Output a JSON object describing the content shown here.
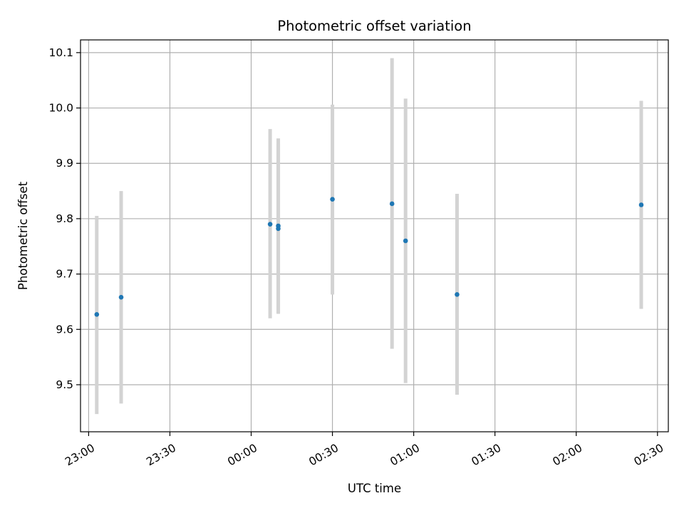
{
  "chart_data": {
    "type": "scatter",
    "title": "Photometric offset variation",
    "xlabel": "UTC time",
    "ylabel": "Photometric offset",
    "grid": true,
    "x_unit": "HH:MM (UTC)",
    "xlim": [
      "22:57",
      "02:34"
    ],
    "ylim": [
      9.415,
      10.123
    ],
    "x_ticks": [
      "23:00",
      "23:30",
      "00:00",
      "00:30",
      "01:00",
      "01:30",
      "02:00",
      "02:30"
    ],
    "y_ticks": [
      "9.5",
      "9.6",
      "9.7",
      "9.8",
      "9.9",
      "10.0",
      "10.1"
    ],
    "colors": {
      "points": "#1f77b4",
      "errorbars": "#d3d3d3",
      "grid": "#b0b0b0"
    },
    "points": [
      {
        "x": "23:03",
        "y": 9.627,
        "ylow": 9.447,
        "yhigh": 9.805
      },
      {
        "x": "23:12",
        "y": 9.658,
        "ylow": 9.466,
        "yhigh": 9.85
      },
      {
        "x": "00:07",
        "y": 9.79,
        "ylow": 9.62,
        "yhigh": 9.962
      },
      {
        "x": "00:10",
        "y": 9.787,
        "ylow": 9.628,
        "yhigh": 9.945
      },
      {
        "x": "00:10",
        "y": 9.782,
        "ylow": 9.63,
        "yhigh": 9.935
      },
      {
        "x": "00:30",
        "y": 9.835,
        "ylow": 9.663,
        "yhigh": 10.006
      },
      {
        "x": "00:52",
        "y": 9.827,
        "ylow": 9.565,
        "yhigh": 10.09
      },
      {
        "x": "00:57",
        "y": 9.76,
        "ylow": 9.503,
        "yhigh": 10.017
      },
      {
        "x": "01:16",
        "y": 9.663,
        "ylow": 9.482,
        "yhigh": 9.845
      },
      {
        "x": "02:24",
        "y": 9.825,
        "ylow": 9.637,
        "yhigh": 10.013
      }
    ]
  }
}
